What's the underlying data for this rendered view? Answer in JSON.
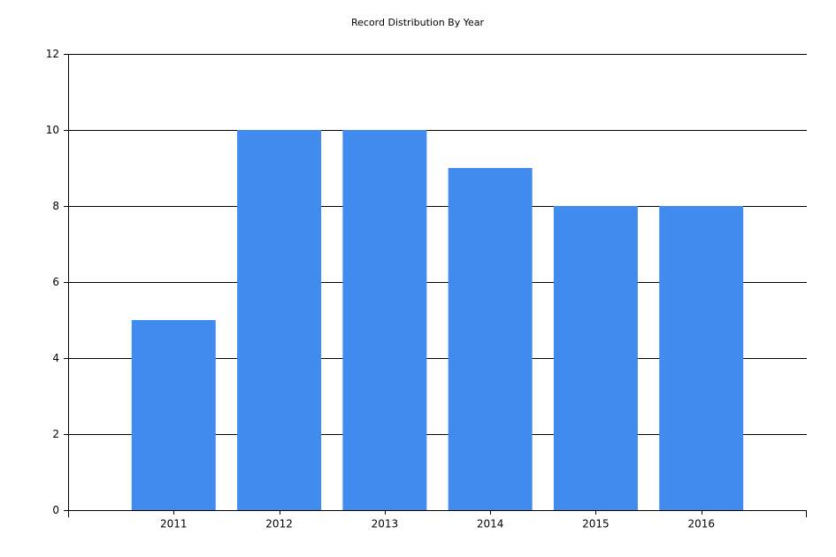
{
  "chart_data": {
    "type": "bar",
    "title": "Record Distribution By Year",
    "categories": [
      "2011",
      "2012",
      "2013",
      "2014",
      "2015",
      "2016"
    ],
    "values": [
      5,
      10,
      10,
      9,
      8,
      8
    ],
    "color": "#418bee",
    "ylim": [
      0,
      12
    ],
    "yticks": [
      0,
      2,
      4,
      6,
      8,
      10,
      12
    ],
    "grid": true
  }
}
